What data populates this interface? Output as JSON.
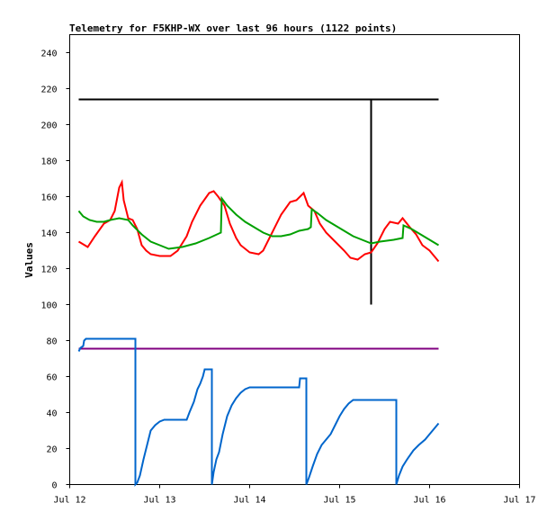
{
  "chart_data": {
    "type": "line",
    "title": "Telemetry for F5KHP-WX over last 96 hours (1122 points)",
    "xlabel": "",
    "ylabel": "Values",
    "ylim": [
      0,
      250
    ],
    "xlim": [
      0,
      5
    ],
    "x_tick_labels": [
      "Jul 12",
      "Jul 13",
      "Jul 14",
      "Jul 15",
      "Jul 16",
      "Jul 17"
    ],
    "y_ticks": [
      0,
      20,
      40,
      60,
      80,
      100,
      120,
      140,
      160,
      180,
      200,
      220,
      240
    ],
    "grid": false,
    "legend": "none",
    "series": [
      {
        "color": "#000000",
        "points": [
          [
            0.1,
            214
          ],
          [
            3.35,
            214
          ],
          [
            3.35,
            100
          ],
          [
            3.35,
            157
          ],
          [
            3.35,
            214
          ],
          [
            4.1,
            214
          ]
        ]
      },
      {
        "color": "#800080",
        "points": [
          [
            0.1,
            75.5
          ],
          [
            4.1,
            75.5
          ]
        ]
      },
      {
        "color": "#ff0000",
        "points": [
          [
            0.1,
            135
          ],
          [
            0.2,
            132
          ],
          [
            0.28,
            138
          ],
          [
            0.38,
            145
          ],
          [
            0.45,
            147
          ],
          [
            0.5,
            152
          ],
          [
            0.55,
            165
          ],
          [
            0.58,
            168
          ],
          [
            0.6,
            158
          ],
          [
            0.65,
            148
          ],
          [
            0.7,
            147
          ],
          [
            0.75,
            142
          ],
          [
            0.8,
            133
          ],
          [
            0.85,
            130
          ],
          [
            0.9,
            128
          ],
          [
            1.0,
            127
          ],
          [
            1.12,
            127
          ],
          [
            1.2,
            130
          ],
          [
            1.3,
            138
          ],
          [
            1.36,
            146
          ],
          [
            1.45,
            155
          ],
          [
            1.55,
            162
          ],
          [
            1.6,
            163
          ],
          [
            1.65,
            160
          ],
          [
            1.72,
            155
          ],
          [
            1.78,
            145
          ],
          [
            1.85,
            137
          ],
          [
            1.9,
            133
          ],
          [
            2.0,
            129
          ],
          [
            2.1,
            128
          ],
          [
            2.15,
            130
          ],
          [
            2.25,
            140
          ],
          [
            2.35,
            150
          ],
          [
            2.45,
            157
          ],
          [
            2.52,
            158
          ],
          [
            2.6,
            162
          ],
          [
            2.65,
            155
          ],
          [
            2.72,
            152
          ],
          [
            2.78,
            145
          ],
          [
            2.85,
            140
          ],
          [
            2.95,
            135
          ],
          [
            3.05,
            130
          ],
          [
            3.12,
            126
          ],
          [
            3.2,
            125
          ],
          [
            3.28,
            128
          ],
          [
            3.35,
            129
          ],
          [
            3.42,
            134
          ],
          [
            3.5,
            142
          ],
          [
            3.56,
            146
          ],
          [
            3.65,
            145
          ],
          [
            3.7,
            148
          ],
          [
            3.78,
            143
          ],
          [
            3.85,
            139
          ],
          [
            3.92,
            133
          ],
          [
            4.0,
            130
          ],
          [
            4.05,
            127
          ],
          [
            4.1,
            124
          ]
        ]
      },
      {
        "color": "#00a000",
        "points": [
          [
            0.1,
            152
          ],
          [
            0.15,
            149
          ],
          [
            0.22,
            147
          ],
          [
            0.3,
            146
          ],
          [
            0.38,
            146
          ],
          [
            0.45,
            147
          ],
          [
            0.55,
            148
          ],
          [
            0.65,
            147
          ],
          [
            0.7,
            144
          ],
          [
            0.8,
            139
          ],
          [
            0.9,
            135
          ],
          [
            1.0,
            133
          ],
          [
            1.1,
            131
          ],
          [
            1.25,
            132
          ],
          [
            1.4,
            134
          ],
          [
            1.55,
            137
          ],
          [
            1.68,
            140
          ],
          [
            1.69,
            159
          ],
          [
            1.75,
            155
          ],
          [
            1.85,
            150
          ],
          [
            1.95,
            146
          ],
          [
            2.05,
            143
          ],
          [
            2.15,
            140
          ],
          [
            2.25,
            138
          ],
          [
            2.35,
            138
          ],
          [
            2.45,
            139
          ],
          [
            2.55,
            141
          ],
          [
            2.65,
            142
          ],
          [
            2.68,
            143
          ],
          [
            2.69,
            153
          ],
          [
            2.75,
            151
          ],
          [
            2.85,
            147
          ],
          [
            2.95,
            144
          ],
          [
            3.05,
            141
          ],
          [
            3.15,
            138
          ],
          [
            3.25,
            136
          ],
          [
            3.35,
            134
          ],
          [
            3.45,
            135
          ],
          [
            3.6,
            136
          ],
          [
            3.7,
            137
          ],
          [
            3.71,
            144
          ],
          [
            3.8,
            142
          ],
          [
            3.9,
            139
          ],
          [
            4.0,
            136
          ],
          [
            4.1,
            133
          ]
        ]
      },
      {
        "color": "#0066cc",
        "points": [
          [
            0.1,
            74
          ],
          [
            0.12,
            76
          ],
          [
            0.15,
            77
          ],
          [
            0.16,
            80
          ],
          [
            0.18,
            81
          ],
          [
            0.3,
            81
          ],
          [
            0.73,
            81
          ],
          [
            0.73,
            0
          ],
          [
            0.75,
            1
          ],
          [
            0.78,
            5
          ],
          [
            0.82,
            14
          ],
          [
            0.86,
            22
          ],
          [
            0.9,
            30
          ],
          [
            0.95,
            33
          ],
          [
            1.0,
            35
          ],
          [
            1.05,
            36
          ],
          [
            1.3,
            36
          ],
          [
            1.33,
            40
          ],
          [
            1.38,
            46
          ],
          [
            1.42,
            53
          ],
          [
            1.45,
            56
          ],
          [
            1.48,
            60
          ],
          [
            1.5,
            64
          ],
          [
            1.58,
            64
          ],
          [
            1.58,
            0
          ],
          [
            1.6,
            7
          ],
          [
            1.63,
            14
          ],
          [
            1.66,
            18
          ],
          [
            1.7,
            28
          ],
          [
            1.75,
            38
          ],
          [
            1.8,
            44
          ],
          [
            1.85,
            48
          ],
          [
            1.9,
            51
          ],
          [
            1.95,
            53
          ],
          [
            2.0,
            54
          ],
          [
            2.1,
            54
          ],
          [
            2.55,
            54
          ],
          [
            2.56,
            59
          ],
          [
            2.63,
            59
          ],
          [
            2.63,
            0
          ],
          [
            2.66,
            4
          ],
          [
            2.7,
            10
          ],
          [
            2.75,
            17
          ],
          [
            2.8,
            22
          ],
          [
            2.85,
            25
          ],
          [
            2.9,
            28
          ],
          [
            2.95,
            33
          ],
          [
            3.0,
            38
          ],
          [
            3.05,
            42
          ],
          [
            3.1,
            45
          ],
          [
            3.15,
            47
          ],
          [
            3.25,
            47
          ],
          [
            3.58,
            47
          ],
          [
            3.63,
            47
          ],
          [
            3.63,
            27
          ],
          [
            3.63,
            0
          ],
          [
            3.66,
            5
          ],
          [
            3.7,
            10
          ],
          [
            3.75,
            14
          ],
          [
            3.82,
            19
          ],
          [
            3.88,
            22
          ],
          [
            3.95,
            25
          ],
          [
            4.0,
            28
          ],
          [
            4.05,
            31
          ],
          [
            4.1,
            34
          ]
        ]
      }
    ]
  }
}
